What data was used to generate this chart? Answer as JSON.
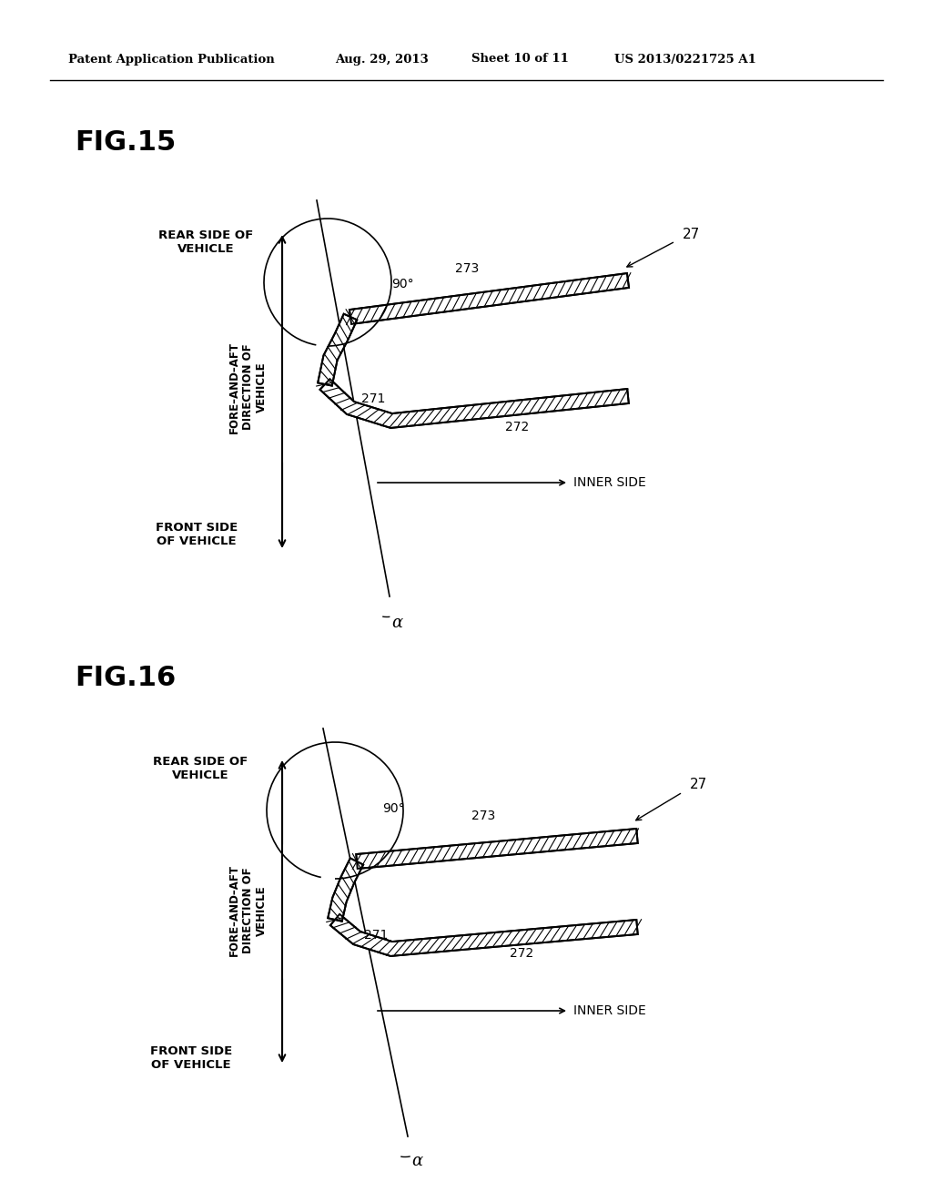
{
  "bg_color": "#ffffff",
  "header_text": "Patent Application Publication",
  "header_date": "Aug. 29, 2013",
  "header_sheet": "Sheet 10 of 11",
  "header_patent": "US 2013/0221725 A1",
  "fig15_label": "FIG.15",
  "fig16_label": "FIG.16",
  "label_271": "271",
  "label_272": "272",
  "label_273": "273",
  "label_27": "27",
  "label_90": "90°",
  "label_alpha": "α",
  "rear_side_of_vehicle": "REAR SIDE OF\nVEHICLE",
  "front_side_of_vehicle": "FRONT SIDE\nOF VEHICLE",
  "fore_and_aft": "FORE–AND–AFT\nDIRECTION OF\nVEHICLE",
  "inner_side": "INNER SIDE"
}
